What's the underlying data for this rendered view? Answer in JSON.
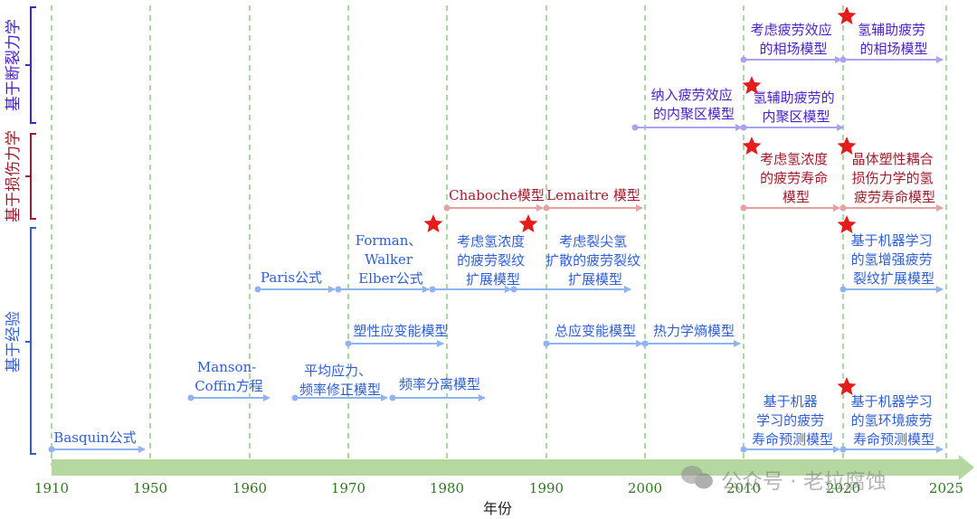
{
  "axis": {
    "title": "年份",
    "years": [
      "1910",
      "1950",
      "1960",
      "1970",
      "1980",
      "1990",
      "2000",
      "2010",
      "2020",
      "2025"
    ]
  },
  "categories": {
    "fracture": "基于断裂力学",
    "damage": "基于损伤力学",
    "empirical": "基于经验"
  },
  "colors": {
    "fracture": "#4b1fc9",
    "damage": "#a31b2a",
    "empirical": "#2f5fd6",
    "fracture_arrow": "#a9a3f5",
    "damage_arrow": "#e8a0a0",
    "empirical_arrow": "#8fb4f5",
    "grid": "#7ec46a",
    "year_text": "#2e7a1e",
    "axis_bar": "#b5d8a0",
    "star": "#e51c1c"
  },
  "models": {
    "hydrogen_phase_field": [
      "氢辅助疲劳",
      "的相场模型"
    ],
    "fatigue_phase_field": [
      "考虑疲劳效应",
      "的相场模型"
    ],
    "fatigue_cohesive": [
      "纳入疲劳效应",
      "的内聚区模型"
    ],
    "hydrogen_cohesive": [
      "氢辅助疲劳的",
      "内聚区模型"
    ],
    "h_conc_life": [
      "考虑氢浓度",
      "的疲劳寿命",
      "模型"
    ],
    "crystal_plasticity": [
      "晶体塑性耦合",
      "损伤力学的氢",
      "疲劳寿命模型"
    ],
    "chaboche": "Chaboche模型",
    "lemaitre": "Lemaitre 模型",
    "forman_walker": [
      "Forman、",
      "Walker",
      "Elber公式"
    ],
    "h_conc_crack": [
      "考虑氢浓度",
      "的疲劳裂纹",
      "扩展模型"
    ],
    "crack_tip_h": [
      "考虑裂尖氢",
      "扩散的疲劳裂纹",
      "扩展模型"
    ],
    "ml_h_crack": [
      "基于机器学习",
      "的氢增强疲劳",
      "裂纹扩展模型"
    ],
    "paris": "Paris公式",
    "plastic_strain_energy": "塑性应变能模型",
    "total_strain_energy": "总应变能模型",
    "thermo_entropy": "热力学熵模型",
    "manson_coffin": [
      "Manson-",
      "Coffin方程"
    ],
    "mean_stress": [
      "平均应力、",
      "频率修正模型"
    ],
    "freq_sep": "频率分离模型",
    "ml_life": [
      "基于机器",
      "学习的疲劳",
      "寿命预测模型"
    ],
    "ml_h_env_life": [
      "基于机器学习",
      "的氢环境疲劳",
      "寿命预测模型"
    ],
    "basquin": "Basquin公式"
  },
  "watermark": "公众号 · 老拉腐蚀"
}
